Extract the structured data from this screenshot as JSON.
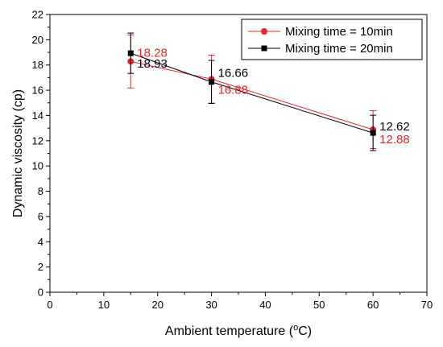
{
  "chart_data": {
    "type": "line",
    "xlabel": "Ambient temperature (",
    "xlabel_sup": "o",
    "xlabel_tail": "C)",
    "ylabel": "Dynamic viscosity (cp)",
    "xlim": [
      0,
      70
    ],
    "ylim": [
      0,
      22
    ],
    "xticks": [
      0,
      10,
      20,
      30,
      40,
      50,
      60,
      70
    ],
    "yticks": [
      0,
      2,
      4,
      6,
      8,
      10,
      12,
      14,
      16,
      18,
      20,
      22
    ],
    "grid": false,
    "legend_position": "top-right",
    "x": [
      15,
      30,
      60
    ],
    "series": [
      {
        "name": "Mixing time = 10min",
        "color": "#e8242b",
        "marker": "circle",
        "values": [
          18.28,
          16.88,
          12.88
        ],
        "labels": [
          "18.28",
          "16.88",
          "12.88"
        ],
        "error": [
          2.1,
          1.9,
          1.5
        ]
      },
      {
        "name": "Mixing time = 20min",
        "color": "#000000",
        "marker": "square",
        "values": [
          18.93,
          16.66,
          12.62
        ],
        "labels": [
          "18.93",
          "16.66",
          "12.62"
        ],
        "error": [
          1.6,
          1.7,
          1.4
        ]
      }
    ]
  }
}
